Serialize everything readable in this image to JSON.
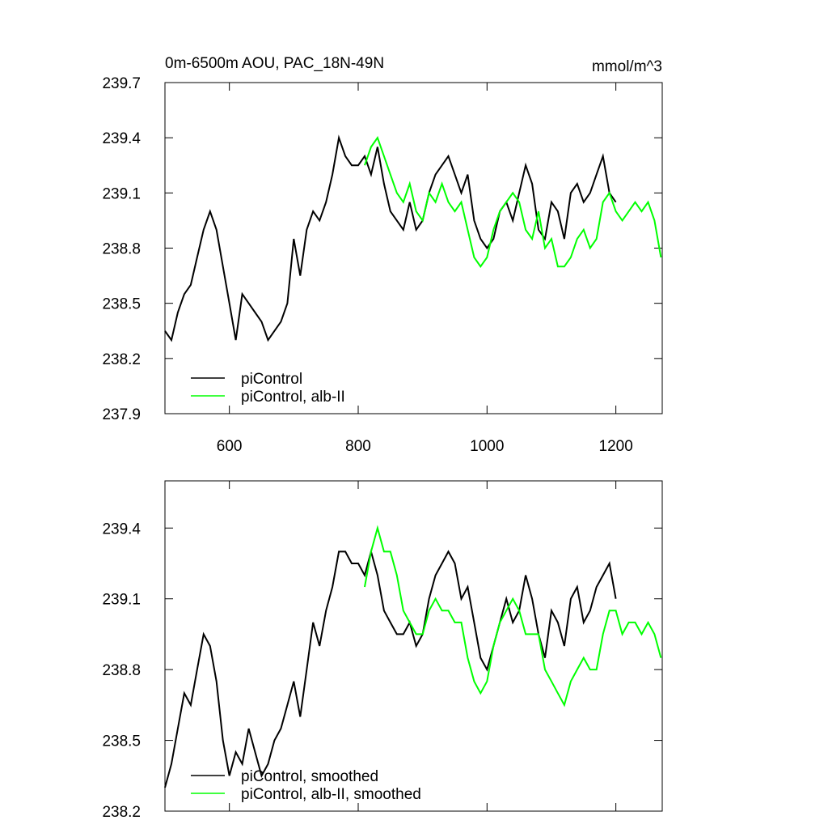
{
  "chart_data": [
    {
      "type": "line",
      "title": "0m-6500m AOU, PAC_18N-49N",
      "units_label": "mmol/m^3",
      "xlim": [
        500,
        1272
      ],
      "xticks": [
        600,
        800,
        1000,
        1200
      ],
      "ylim": [
        237.9,
        239.7
      ],
      "yticks": [
        237.9,
        238.2,
        238.5,
        238.8,
        239.1,
        239.4,
        239.7
      ],
      "legend": "lower left",
      "show_xtick_labels": true,
      "series": [
        {
          "name": "piControl",
          "color": "#000000",
          "x": [
            500,
            510,
            520,
            530,
            540,
            550,
            560,
            570,
            580,
            590,
            600,
            610,
            620,
            630,
            640,
            650,
            660,
            670,
            680,
            690,
            700,
            710,
            720,
            730,
            740,
            750,
            760,
            770,
            780,
            790,
            800,
            810,
            820,
            830,
            840,
            850,
            860,
            870,
            880,
            890,
            900,
            910,
            920,
            930,
            940,
            950,
            960,
            970,
            980,
            990,
            1000,
            1010,
            1020,
            1030,
            1040,
            1050,
            1060,
            1070,
            1080,
            1090,
            1100,
            1110,
            1120,
            1130,
            1140,
            1150,
            1160,
            1170,
            1180,
            1190,
            1200
          ],
          "values": [
            238.35,
            238.3,
            238.45,
            238.55,
            238.6,
            238.75,
            238.9,
            239.0,
            238.9,
            238.7,
            238.5,
            238.3,
            238.55,
            238.5,
            238.45,
            238.4,
            238.3,
            238.35,
            238.4,
            238.5,
            238.85,
            238.65,
            238.9,
            239.0,
            238.95,
            239.05,
            239.2,
            239.4,
            239.3,
            239.25,
            239.25,
            239.3,
            239.2,
            239.35,
            239.15,
            239.0,
            238.95,
            238.9,
            239.05,
            238.9,
            238.95,
            239.1,
            239.2,
            239.25,
            239.3,
            239.2,
            239.1,
            239.2,
            238.95,
            238.85,
            238.8,
            238.85,
            239.0,
            239.05,
            238.95,
            239.1,
            239.25,
            239.15,
            238.9,
            238.85,
            239.05,
            239.0,
            238.85,
            239.1,
            239.15,
            239.05,
            239.1,
            239.2,
            239.3,
            239.1,
            239.05
          ]
        },
        {
          "name": "piControl, alb-II",
          "color": "#00ff00",
          "x": [
            810,
            820,
            830,
            840,
            850,
            860,
            870,
            880,
            890,
            900,
            910,
            920,
            930,
            940,
            950,
            960,
            970,
            980,
            990,
            1000,
            1010,
            1020,
            1030,
            1040,
            1050,
            1060,
            1070,
            1080,
            1090,
            1100,
            1110,
            1120,
            1130,
            1140,
            1150,
            1160,
            1170,
            1180,
            1190,
            1200,
            1210,
            1220,
            1230,
            1240,
            1250,
            1260,
            1270
          ],
          "values": [
            239.25,
            239.35,
            239.4,
            239.3,
            239.2,
            239.1,
            239.05,
            239.15,
            239.0,
            238.95,
            239.1,
            239.05,
            239.15,
            239.05,
            239.0,
            239.05,
            238.9,
            238.75,
            238.7,
            238.75,
            238.9,
            239.0,
            239.05,
            239.1,
            239.05,
            238.9,
            238.85,
            239.0,
            238.8,
            238.85,
            238.7,
            238.7,
            238.75,
            238.85,
            238.9,
            238.8,
            238.85,
            239.05,
            239.1,
            239.0,
            238.95,
            239.0,
            239.05,
            239.0,
            239.05,
            238.95,
            238.75
          ]
        }
      ]
    },
    {
      "type": "line",
      "xlim": [
        500,
        1272
      ],
      "xticks": [
        600,
        800,
        1000,
        1200
      ],
      "ylim": [
        238.2,
        239.6
      ],
      "yticks": [
        238.2,
        238.5,
        238.8,
        239.1,
        239.4
      ],
      "legend": "lower left",
      "show_xtick_labels": false,
      "series": [
        {
          "name": "piControl, smoothed",
          "color": "#000000",
          "x": [
            500,
            510,
            520,
            530,
            540,
            550,
            560,
            570,
            580,
            590,
            600,
            610,
            620,
            630,
            640,
            650,
            660,
            670,
            680,
            690,
            700,
            710,
            720,
            730,
            740,
            750,
            760,
            770,
            780,
            790,
            800,
            810,
            820,
            830,
            840,
            850,
            860,
            870,
            880,
            890,
            900,
            910,
            920,
            930,
            940,
            950,
            960,
            970,
            980,
            990,
            1000,
            1010,
            1020,
            1030,
            1040,
            1050,
            1060,
            1070,
            1080,
            1090,
            1100,
            1110,
            1120,
            1130,
            1140,
            1150,
            1160,
            1170,
            1180,
            1190,
            1200
          ],
          "values": [
            238.3,
            238.4,
            238.55,
            238.7,
            238.65,
            238.8,
            238.95,
            238.9,
            238.75,
            238.5,
            238.35,
            238.45,
            238.4,
            238.55,
            238.45,
            238.35,
            238.4,
            238.5,
            238.55,
            238.65,
            238.75,
            238.6,
            238.8,
            239.0,
            238.9,
            239.05,
            239.15,
            239.3,
            239.3,
            239.25,
            239.25,
            239.2,
            239.3,
            239.2,
            239.05,
            239.0,
            238.95,
            238.95,
            239.0,
            238.9,
            238.95,
            239.1,
            239.2,
            239.25,
            239.3,
            239.25,
            239.1,
            239.15,
            239.0,
            238.85,
            238.8,
            238.9,
            239.0,
            239.1,
            239.0,
            239.05,
            239.2,
            239.1,
            238.95,
            238.85,
            239.05,
            239.0,
            238.9,
            239.1,
            239.15,
            239.0,
            239.05,
            239.15,
            239.2,
            239.25,
            239.1
          ]
        },
        {
          "name": "piControl, alb-II, smoothed",
          "color": "#00ff00",
          "x": [
            810,
            820,
            830,
            840,
            850,
            860,
            870,
            880,
            890,
            900,
            910,
            920,
            930,
            940,
            950,
            960,
            970,
            980,
            990,
            1000,
            1010,
            1020,
            1030,
            1040,
            1050,
            1060,
            1070,
            1080,
            1090,
            1100,
            1110,
            1120,
            1130,
            1140,
            1150,
            1160,
            1170,
            1180,
            1190,
            1200,
            1210,
            1220,
            1230,
            1240,
            1250,
            1260,
            1270
          ],
          "values": [
            239.15,
            239.3,
            239.4,
            239.3,
            239.3,
            239.2,
            239.05,
            239.0,
            238.95,
            238.95,
            239.05,
            239.1,
            239.05,
            239.05,
            239.0,
            239.0,
            238.85,
            238.75,
            238.7,
            238.75,
            238.9,
            239.0,
            239.05,
            239.1,
            239.05,
            238.95,
            238.95,
            238.95,
            238.8,
            238.75,
            238.7,
            238.65,
            238.75,
            238.8,
            238.85,
            238.8,
            238.8,
            238.95,
            239.05,
            239.05,
            238.95,
            239.0,
            239.0,
            238.95,
            239.0,
            238.95,
            238.85
          ]
        }
      ]
    }
  ]
}
